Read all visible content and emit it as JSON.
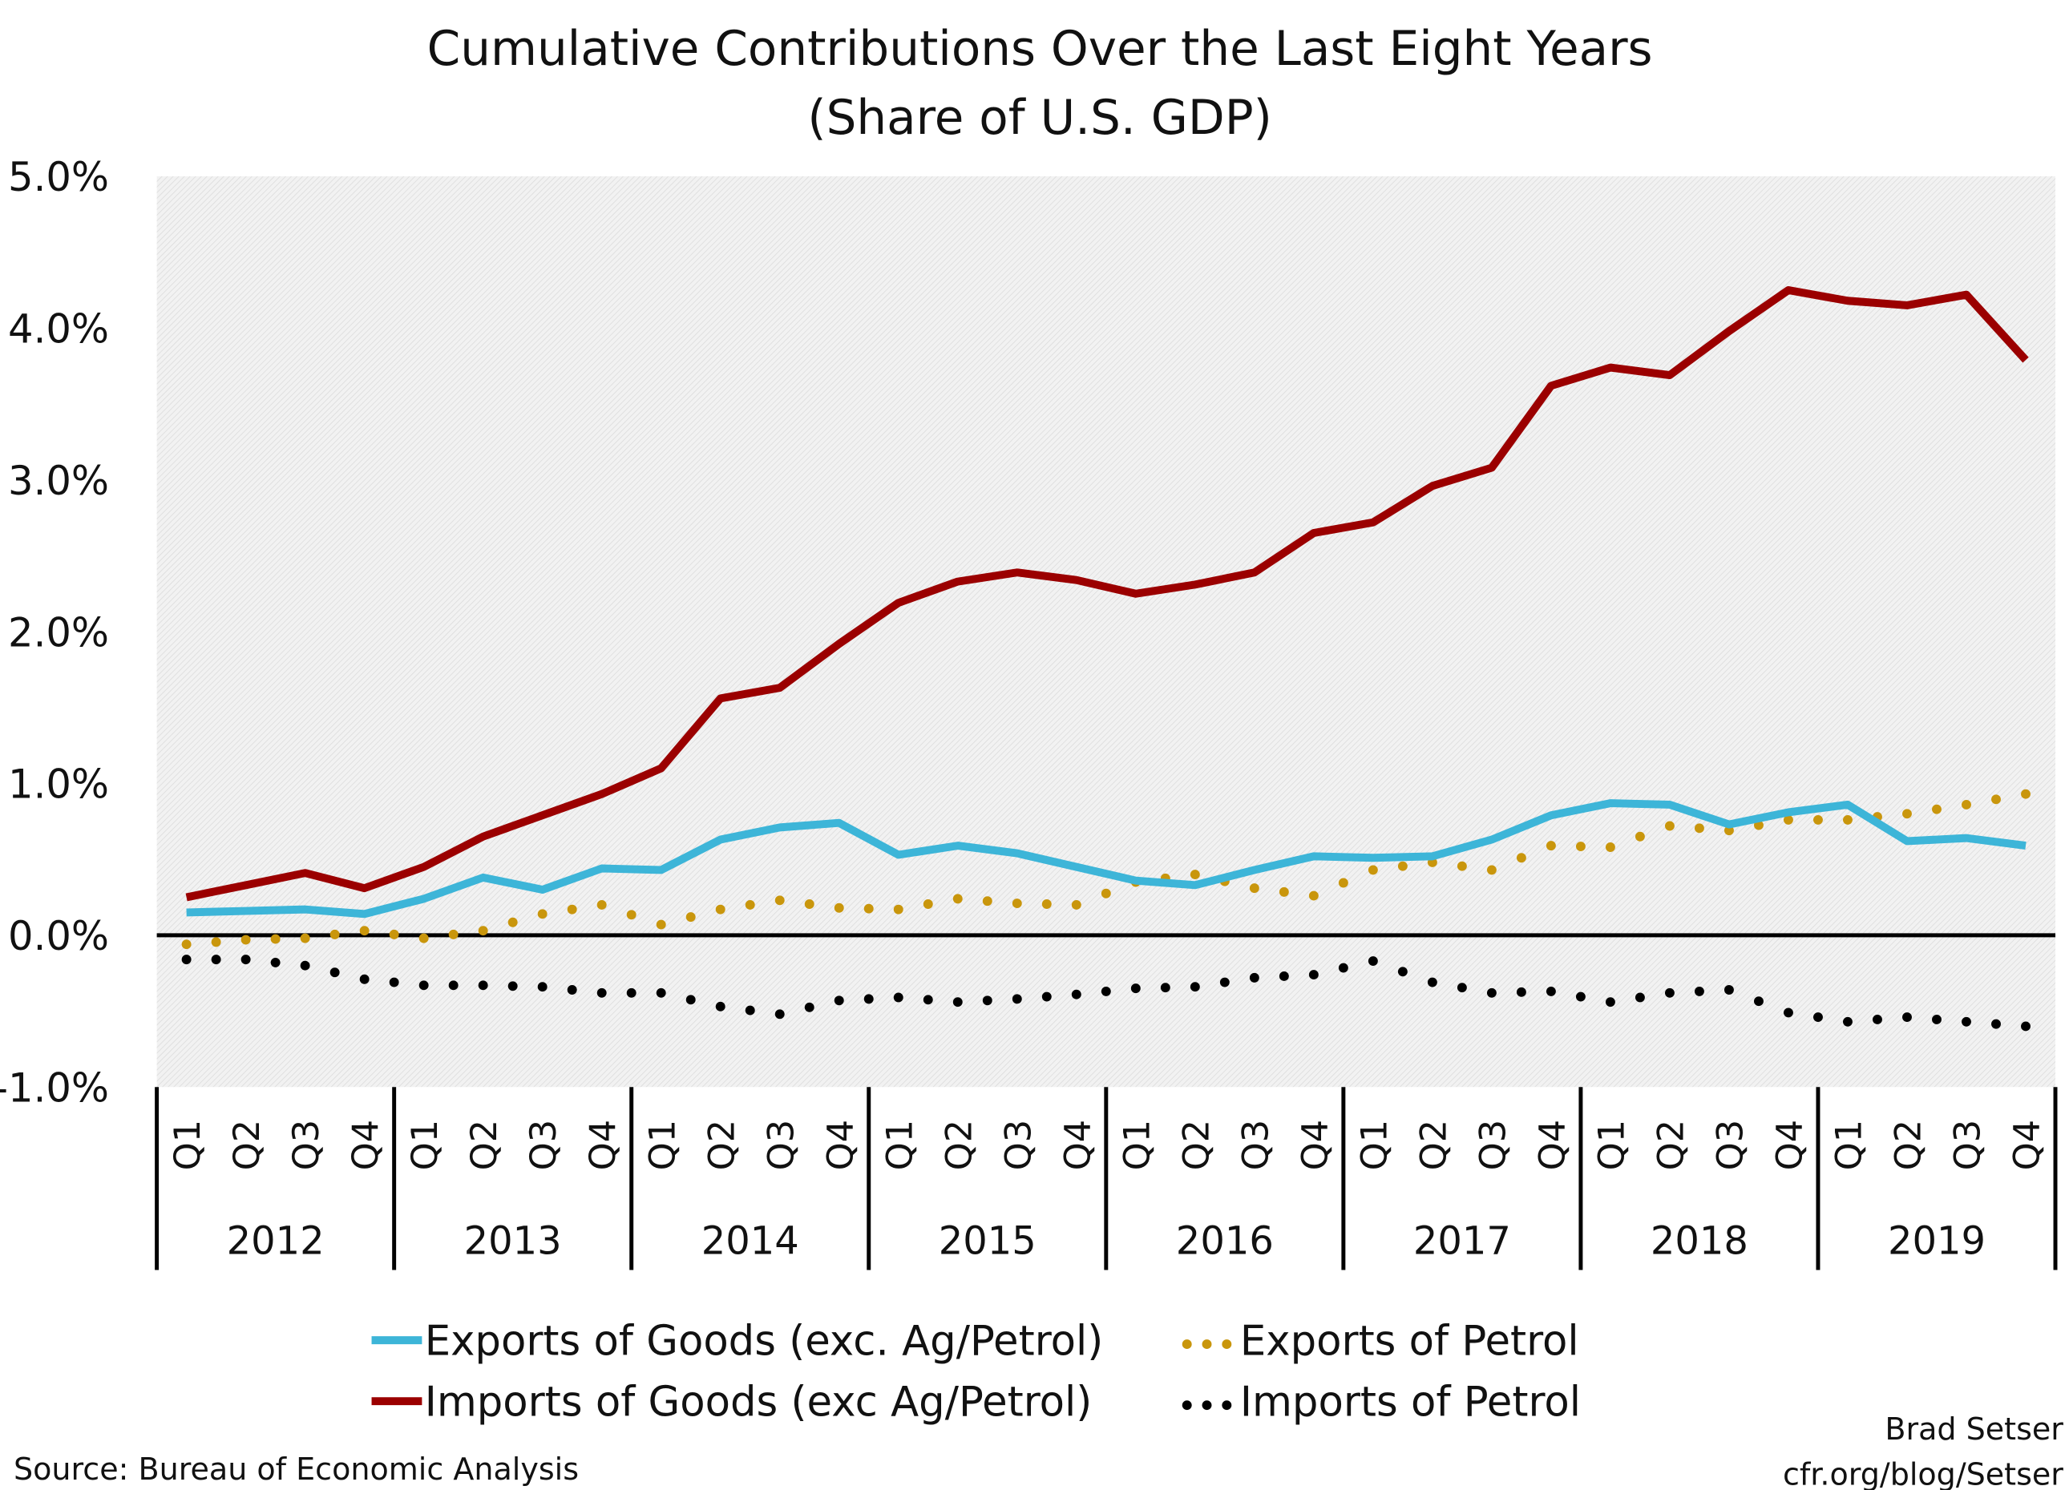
{
  "chart_data": {
    "type": "line",
    "title": "Cumulative Contributions Over the Last Eight Years",
    "subtitle": "(Share of U.S. GDP)",
    "ylim": [
      -1.0,
      5.0
    ],
    "yticks": [
      "5.0%",
      "4.0%",
      "3.0%",
      "2.0%",
      "1.0%",
      "0.0%",
      "-1.0%"
    ],
    "ytick_values": [
      5,
      4,
      3,
      2,
      1,
      0,
      -1
    ],
    "quarters": [
      "Q1",
      "Q2",
      "Q3",
      "Q4"
    ],
    "years": [
      "2012",
      "2013",
      "2014",
      "2015",
      "2016",
      "2017",
      "2018",
      "2019"
    ],
    "grid": false,
    "legend_position": "bottom",
    "series": [
      {
        "name": "Exports of Goods (exc. Ag/Petrol)",
        "style": "solid",
        "color": "#3db5d8",
        "values": [
          0.15,
          0.16,
          0.17,
          0.14,
          0.24,
          0.38,
          0.3,
          0.44,
          0.43,
          0.63,
          0.71,
          0.74,
          0.53,
          0.59,
          0.54,
          0.45,
          0.36,
          0.33,
          0.43,
          0.52,
          0.51,
          0.52,
          0.63,
          0.79,
          0.87,
          0.86,
          0.73,
          0.81,
          0.86,
          0.62,
          0.64,
          0.59
        ]
      },
      {
        "name": "Imports of Goods (exc Ag/Petrol)",
        "style": "solid",
        "color": "#9b0000",
        "values": [
          0.25,
          0.33,
          0.41,
          0.31,
          0.45,
          0.65,
          0.79,
          0.93,
          1.1,
          1.56,
          1.63,
          1.92,
          2.19,
          2.33,
          2.39,
          2.34,
          2.25,
          2.31,
          2.39,
          2.65,
          2.72,
          2.96,
          3.08,
          3.62,
          3.74,
          3.69,
          3.98,
          4.25,
          4.18,
          4.15,
          4.22,
          3.79
        ]
      },
      {
        "name": "Exports of Petrol",
        "style": "dotted",
        "color": "#c9960c",
        "values": [
          -0.06,
          -0.03,
          -0.02,
          0.03,
          -0.02,
          0.03,
          0.14,
          0.2,
          0.07,
          0.17,
          0.23,
          0.18,
          0.17,
          0.24,
          0.21,
          0.2,
          0.35,
          0.4,
          0.31,
          0.26,
          0.43,
          0.48,
          0.43,
          0.59,
          0.58,
          0.72,
          0.69,
          0.76,
          0.76,
          0.8,
          0.86,
          0.93
        ]
      },
      {
        "name": "Imports of Petrol",
        "style": "dotted",
        "color": "#000000",
        "values": [
          -0.16,
          -0.16,
          -0.2,
          -0.29,
          -0.33,
          -0.33,
          -0.34,
          -0.38,
          -0.38,
          -0.47,
          -0.52,
          -0.43,
          -0.41,
          -0.44,
          -0.42,
          -0.39,
          -0.35,
          -0.34,
          -0.28,
          -0.26,
          -0.17,
          -0.31,
          -0.38,
          -0.37,
          -0.44,
          -0.38,
          -0.36,
          -0.51,
          -0.57,
          -0.54,
          -0.57,
          -0.6
        ]
      }
    ]
  },
  "footer": {
    "source": "Source: Bureau of Economic Analysis",
    "author": "Brad Setser",
    "url": "cfr.org/blog/Setser"
  }
}
